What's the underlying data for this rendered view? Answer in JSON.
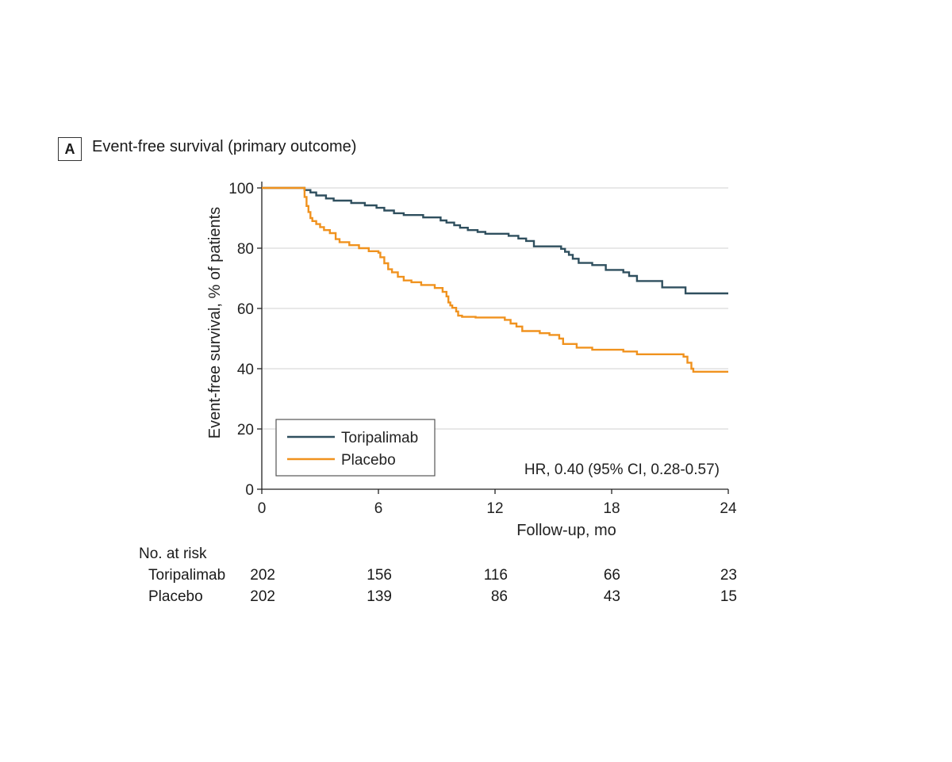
{
  "figure": {
    "panel_letter": "A",
    "panel_title": "Event-free survival (primary outcome)"
  },
  "chart_data": {
    "type": "line",
    "subtype": "kaplan-meier step",
    "xlabel": "Follow-up, mo",
    "ylabel": "Event-free survival, % of patients",
    "xlim": [
      0,
      24
    ],
    "ylim": [
      0,
      100
    ],
    "x_ticks": [
      0,
      6,
      12,
      18,
      24
    ],
    "y_ticks": [
      0,
      20,
      40,
      60,
      80,
      100
    ],
    "grid": "horizontal",
    "legend_position": "bottom-left",
    "annotation": "HR, 0.40 (95% CI, 0.28-0.57)",
    "series": [
      {
        "name": "Toripalimab",
        "color": "#2f4f5e",
        "x": [
          0,
          2.2,
          2.5,
          2.8,
          3.3,
          3.7,
          4.6,
          5.3,
          5.9,
          6.3,
          6.8,
          7.3,
          8.3,
          9.2,
          9.5,
          9.9,
          10.2,
          10.6,
          11.1,
          11.5,
          12.7,
          13.2,
          13.6,
          14.0,
          15.4,
          15.6,
          15.8,
          16.0,
          16.3,
          17.0,
          17.7,
          18.6,
          18.9,
          19.3,
          20.6,
          21.8,
          24.0
        ],
        "y": [
          100,
          99.3,
          98.5,
          97.5,
          96.5,
          95.8,
          95,
          94.2,
          93.4,
          92.5,
          91.6,
          91,
          90.2,
          89.2,
          88.5,
          87.6,
          86.8,
          86,
          85.4,
          84.8,
          84.1,
          83.2,
          82.4,
          80.6,
          79.8,
          78.8,
          77.8,
          76.5,
          75.1,
          74.4,
          72.8,
          72,
          70.8,
          69.1,
          67,
          65,
          65
        ]
      },
      {
        "name": "Placebo",
        "color": "#f0921e",
        "x": [
          0,
          2.2,
          2.3,
          2.4,
          2.5,
          2.6,
          2.8,
          3.0,
          3.2,
          3.5,
          3.8,
          4.0,
          4.5,
          5.0,
          5.5,
          6.0,
          6.1,
          6.3,
          6.5,
          6.7,
          7.0,
          7.3,
          7.7,
          8.2,
          8.9,
          9.3,
          9.5,
          9.6,
          9.7,
          9.8,
          10.0,
          10.1,
          10.3,
          11.0,
          12.5,
          12.8,
          13.1,
          13.4,
          14.3,
          14.8,
          15.3,
          15.5,
          16.2,
          17.0,
          18.6,
          19.3,
          21.7,
          21.9,
          22.1,
          22.2,
          24.0
        ],
        "y": [
          100,
          97,
          94,
          92,
          90,
          89,
          88,
          87,
          86,
          85,
          83,
          82,
          81,
          80,
          79,
          78.5,
          77,
          75,
          73,
          72,
          70.5,
          69.3,
          68.7,
          67.8,
          66.8,
          65.5,
          64,
          62,
          61,
          60.2,
          59,
          57.6,
          57.2,
          57,
          56.2,
          55,
          54,
          52.5,
          51.8,
          51.2,
          50,
          48.2,
          47,
          46.3,
          45.7,
          44.8,
          44,
          42,
          40,
          39,
          39
        ]
      }
    ],
    "risk_table": {
      "header": "No. at risk",
      "times": [
        0,
        6,
        12,
        18,
        24
      ],
      "rows": [
        {
          "label": "Toripalimab",
          "values": [
            "202",
            "156",
            "116",
            "66",
            "23"
          ]
        },
        {
          "label": "Placebo",
          "values": [
            "202",
            "139",
            "86",
            "43",
            "15"
          ]
        }
      ]
    }
  }
}
